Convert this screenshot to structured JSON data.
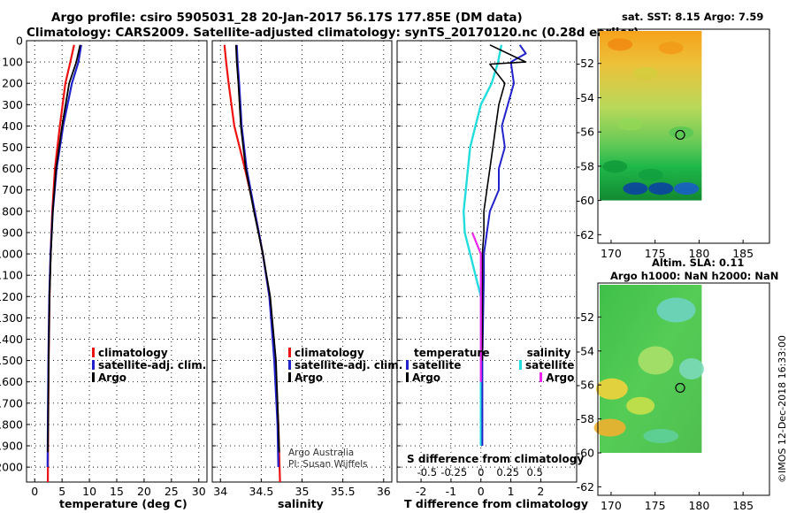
{
  "header": {
    "line1": "Argo profile: csiro 5905031_28 20-Jan-2017 56.17S 177.85E (DM data)",
    "line2": "Climatology: CARS2009. Satellite-adjusted climatology: synTS_20170120.nc (0.28d earlier)"
  },
  "colors": {
    "climatology": "#ee1111",
    "satellite": "#2222cc",
    "argo": "#000000",
    "satellite_s": "#22dddd",
    "argo_s": "#ee22ee"
  },
  "chart_data": [
    {
      "type": "line",
      "name": "temperature",
      "xlabel": "temperature (deg C)",
      "xlim": [
        -1.5,
        31.5
      ],
      "ylim": [
        2070,
        0
      ],
      "xticks": [
        0,
        5,
        10,
        15,
        20,
        25,
        30
      ],
      "yticks": [
        0,
        100,
        200,
        300,
        400,
        500,
        600,
        700,
        800,
        900,
        1000,
        1100,
        1200,
        1300,
        1400,
        1500,
        1600,
        1700,
        1800,
        1900,
        2000
      ],
      "series": [
        {
          "name": "climatology",
          "x": [
            7.2,
            6.5,
            5.6,
            4.6,
            3.7,
            3.2,
            2.9,
            2.7,
            2.55,
            2.45,
            2.4
          ],
          "depth": [
            20,
            100,
            200,
            400,
            600,
            800,
            1000,
            1200,
            1500,
            1800,
            2070
          ]
        },
        {
          "name": "satellite-adj. clim.",
          "x": [
            8.5,
            8.0,
            6.8,
            5.2,
            4.0,
            3.3,
            2.9,
            2.65,
            2.5,
            2.4,
            2.35
          ],
          "depth": [
            20,
            100,
            200,
            400,
            600,
            800,
            1000,
            1200,
            1500,
            1800,
            2000
          ]
        },
        {
          "name": "Argo",
          "x": [
            8.3,
            7.6,
            6.3,
            5.0,
            3.9,
            3.3,
            2.95,
            2.7,
            2.55,
            2.45,
            2.4
          ],
          "depth": [
            20,
            100,
            200,
            400,
            600,
            800,
            1000,
            1200,
            1500,
            1800,
            1930
          ]
        }
      ],
      "legend": [
        "climatology",
        "satellite-adj. clim.",
        "Argo"
      ]
    },
    {
      "type": "line",
      "name": "salinity",
      "xlabel": "salinity",
      "xlim": [
        33.9,
        36.1
      ],
      "ylim": [
        2070,
        0
      ],
      "xticks": [
        34,
        34.5,
        35,
        35.5,
        36
      ],
      "xticklabels": [
        "34",
        "34.5",
        "35",
        "35.5",
        "36"
      ],
      "series": [
        {
          "name": "climatology",
          "x": [
            34.05,
            34.07,
            34.1,
            34.17,
            34.3,
            34.42,
            34.52,
            34.6,
            34.67,
            34.71,
            34.73
          ],
          "depth": [
            20,
            100,
            200,
            400,
            600,
            800,
            1000,
            1200,
            1500,
            1800,
            2070
          ]
        },
        {
          "name": "satellite-adj. clim.",
          "x": [
            34.2,
            34.21,
            34.23,
            34.26,
            34.32,
            34.42,
            34.52,
            34.6,
            34.66,
            34.7,
            34.71
          ],
          "depth": [
            20,
            100,
            200,
            400,
            600,
            800,
            1000,
            1200,
            1500,
            1800,
            2000
          ]
        },
        {
          "name": "Argo",
          "x": [
            34.19,
            34.2,
            34.22,
            34.25,
            34.31,
            34.41,
            34.52,
            34.61,
            34.68,
            34.71,
            34.72
          ],
          "depth": [
            20,
            100,
            200,
            400,
            600,
            800,
            1000,
            1200,
            1500,
            1800,
            1930
          ]
        }
      ],
      "legend": [
        "climatology",
        "satellite-adj. clim.",
        "Argo"
      ],
      "credit": [
        "Argo Australia",
        "PI: Susan Wijffels"
      ]
    },
    {
      "type": "line",
      "name": "difference from climatology",
      "xlabel": "T difference from climatology",
      "toplabel": "S difference from climatology",
      "xlim": [
        -2.8,
        3.2
      ],
      "ylim": [
        2070,
        0
      ],
      "xticks": [
        -2,
        -1,
        0,
        1,
        2
      ],
      "xticklabels": [
        "-2",
        "-1",
        "0",
        "1",
        "2"
      ],
      "s_ticks": [
        -0.5,
        -0.25,
        0,
        0.25,
        0.5
      ],
      "s_ticklabels": [
        "-0.5",
        "-0.25",
        "0",
        "0.25",
        "0.5"
      ],
      "series": [
        {
          "name": "temperature satellite",
          "x": [
            1.3,
            1.5,
            1.0,
            1.1,
            0.9,
            0.7,
            0.8,
            0.6,
            0.6,
            0.3,
            0.2,
            0.1,
            0.1,
            0.05,
            0.05
          ],
          "depth": [
            20,
            60,
            100,
            200,
            300,
            400,
            500,
            600,
            700,
            800,
            900,
            1000,
            1100,
            1500,
            1900
          ]
        },
        {
          "name": "temperature Argo",
          "x": [
            0.3,
            1.5,
            0.3,
            0.8,
            0.6,
            0.5,
            0.4,
            0.3,
            0.2,
            0.1,
            0.1,
            0.05,
            0.05,
            0.05,
            0.05
          ],
          "depth": [
            20,
            100,
            110,
            200,
            300,
            400,
            500,
            600,
            700,
            800,
            900,
            1000,
            1100,
            1300,
            1500
          ]
        },
        {
          "name": "salinity satellite",
          "x": [
            0.19,
            0.16,
            0.1,
            0.0,
            -0.05,
            -0.1,
            -0.12,
            -0.14,
            -0.16,
            -0.15,
            -0.1,
            -0.05,
            0.0,
            0.0,
            0.0
          ],
          "depth": [
            20,
            100,
            200,
            300,
            400,
            500,
            600,
            700,
            800,
            900,
            1000,
            1100,
            1200,
            1500,
            1900
          ]
        },
        {
          "name": "salinity Argo",
          "x": [
            -0.08,
            0.0,
            0.0,
            0.0,
            0.0,
            0.0
          ],
          "depth": [
            900,
            1000,
            1100,
            1300,
            1500,
            1600
          ]
        }
      ],
      "legend_left": {
        "title": "temperature",
        "items": [
          "satellite",
          "Argo"
        ]
      },
      "legend_right": {
        "title": "salinity",
        "items": [
          "satellite",
          "Argo"
        ]
      }
    },
    {
      "type": "heatmap",
      "name": "sat-sst-map",
      "title": "sat. SST: 8.15 Argo: 7.59",
      "xlim": [
        168.5,
        188
      ],
      "ylim": [
        -62.5,
        -50
      ],
      "xticks": [
        170,
        175,
        180,
        185
      ],
      "yticks": [
        -52,
        -54,
        -56,
        -58,
        -60,
        -62
      ],
      "argo_position": {
        "lon": 177.85,
        "lat": -56.17
      }
    },
    {
      "type": "heatmap",
      "name": "altim-sla-map",
      "title": "Altim. SLA: 0.11",
      "subtitle": "Argo h1000: NaN h2000: NaN",
      "xlim": [
        168.5,
        188
      ],
      "ylim": [
        -62.5,
        -50
      ],
      "xticks": [
        170,
        175,
        180,
        185
      ],
      "yticks": [
        -52,
        -54,
        -56,
        -58,
        -60,
        -62
      ],
      "argo_position": {
        "lon": 177.85,
        "lat": -56.17
      }
    }
  ],
  "timestamp": "©IMOS 12-Dec-2018 16:33:00"
}
